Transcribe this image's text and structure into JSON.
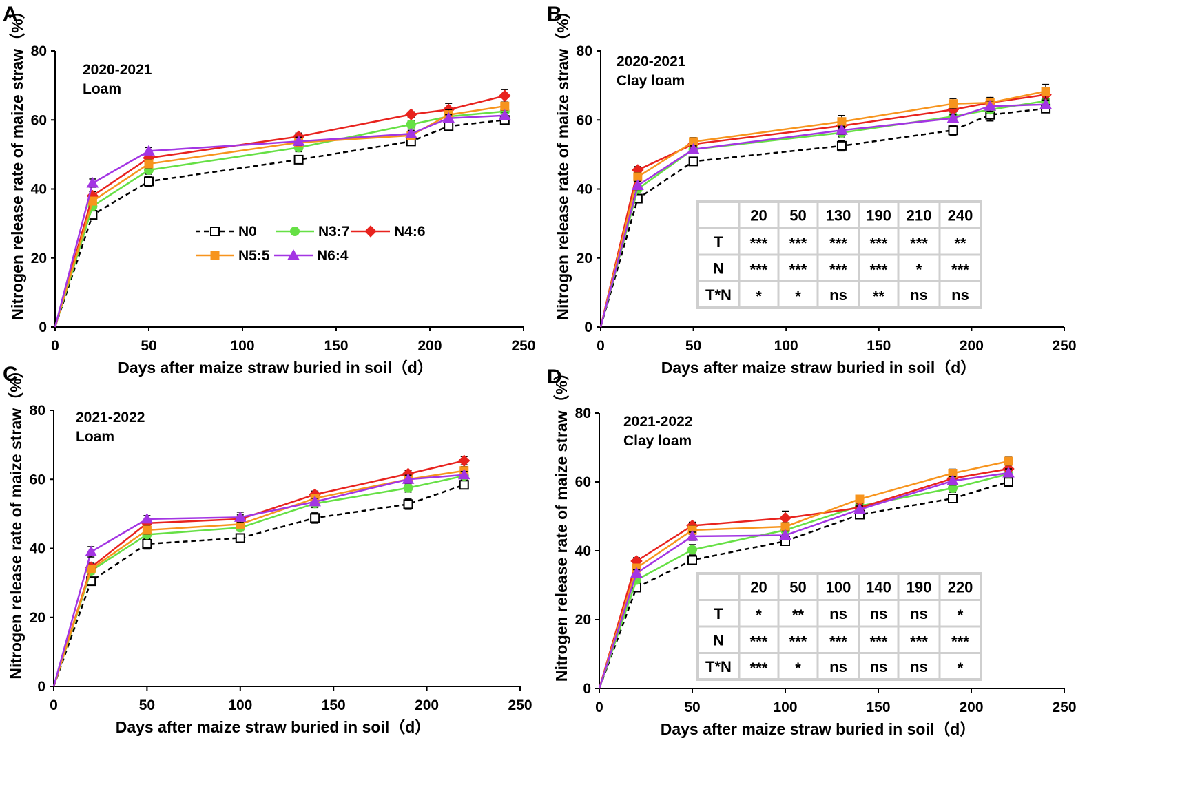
{
  "legend": [
    {
      "key": "N0",
      "label": "N0",
      "color": "#000000",
      "marker": "square-open",
      "dashed": true
    },
    {
      "key": "N37",
      "label": "N3:7",
      "color": "#66E045",
      "marker": "circle",
      "dashed": false
    },
    {
      "key": "N46",
      "label": "N4:6",
      "color": "#E8231E",
      "marker": "diamond",
      "dashed": false
    },
    {
      "key": "N55",
      "label": "N5:5",
      "color": "#F7941D",
      "marker": "square",
      "dashed": false
    },
    {
      "key": "N64",
      "label": "N6:4",
      "color": "#A335E3",
      "marker": "triangle",
      "dashed": false
    }
  ],
  "chart_data": [
    {
      "type": "line",
      "panel": "A",
      "annotation": [
        "2020-2021",
        "Loam"
      ],
      "xlabel": "Days after maize straw buried in soil（d）",
      "ylabel": "Nitrogen release rate of maize straw（%）",
      "xlim": [
        0,
        250
      ],
      "ylim": [
        0,
        80
      ],
      "xticks": [
        "0",
        "50",
        "100",
        "150",
        "200",
        "250"
      ],
      "yticks": [
        "0",
        "20",
        "40",
        "60",
        "80"
      ],
      "x": [
        0,
        20,
        50,
        130,
        190,
        210,
        240
      ],
      "series": [
        {
          "name": "N0",
          "values": [
            0,
            32.5,
            42.2,
            48.5,
            53.8,
            58.2,
            60.0
          ],
          "err": [
            0,
            1.2,
            1.5,
            0.8,
            1.0,
            1.2,
            1.0
          ]
        },
        {
          "name": "N3:7",
          "values": [
            0,
            35.0,
            45.5,
            52.0,
            58.7,
            61.0,
            62.5
          ],
          "err": [
            0,
            1.0,
            1.2,
            1.2,
            1.0,
            1.2,
            1.2
          ]
        },
        {
          "name": "N4:6",
          "values": [
            0,
            38.0,
            49.0,
            55.2,
            61.6,
            63.0,
            67.0
          ],
          "err": [
            0,
            1.2,
            1.2,
            1.0,
            0.8,
            1.8,
            1.8
          ]
        },
        {
          "name": "N5:5",
          "values": [
            0,
            36.5,
            47.3,
            53.5,
            55.5,
            61.5,
            64.0
          ],
          "err": [
            0,
            1.0,
            1.2,
            1.0,
            1.0,
            1.5,
            1.2
          ]
        },
        {
          "name": "N6:4",
          "values": [
            0,
            41.7,
            51.0,
            53.8,
            56.0,
            60.5,
            61.3
          ],
          "err": [
            0,
            1.2,
            1.0,
            1.2,
            1.0,
            1.0,
            1.0
          ]
        }
      ],
      "show_legend": true
    },
    {
      "type": "line",
      "panel": "B",
      "annotation": [
        "2020-2021",
        "Clay loam"
      ],
      "xlabel": "Days after maize straw buried in soil（d）",
      "ylabel": "Nitrogen release rate of maize straw（%）",
      "xlim": [
        0,
        250
      ],
      "ylim": [
        0,
        80
      ],
      "xticks": [
        "0",
        "50",
        "100",
        "150",
        "200",
        "250"
      ],
      "yticks": [
        "0",
        "20",
        "40",
        "60",
        "80"
      ],
      "x": [
        0,
        20,
        50,
        130,
        190,
        210,
        240
      ],
      "series": [
        {
          "name": "N0",
          "values": [
            0,
            37.2,
            48.0,
            52.5,
            57.0,
            61.5,
            63.3
          ],
          "err": [
            0,
            1.0,
            1.0,
            1.5,
            1.5,
            1.8,
            1.0
          ]
        },
        {
          "name": "N3:7",
          "values": [
            0,
            40.0,
            51.5,
            56.3,
            61.0,
            63.0,
            65.5
          ],
          "err": [
            0,
            1.0,
            1.0,
            1.2,
            1.2,
            1.2,
            1.2
          ]
        },
        {
          "name": "N4:6",
          "values": [
            0,
            45.5,
            53.0,
            58.3,
            63.0,
            65.0,
            67.3
          ],
          "err": [
            0,
            1.0,
            1.2,
            1.2,
            1.5,
            1.5,
            1.5
          ]
        },
        {
          "name": "N5:5",
          "values": [
            0,
            43.5,
            53.7,
            59.5,
            64.7,
            65.0,
            68.3
          ],
          "err": [
            0,
            1.2,
            1.2,
            1.8,
            1.5,
            1.5,
            2.0
          ]
        },
        {
          "name": "N6:4",
          "values": [
            0,
            41.0,
            51.5,
            57.0,
            60.5,
            64.0,
            64.5
          ],
          "err": [
            0,
            1.2,
            1.0,
            1.2,
            1.2,
            1.5,
            1.2
          ]
        }
      ],
      "stats_table": {
        "header": [
          "",
          "20",
          "50",
          "130",
          "190",
          "210",
          "240"
        ],
        "rows": [
          [
            "T",
            "***",
            "***",
            "***",
            "***",
            "***",
            "**"
          ],
          [
            "N",
            "***",
            "***",
            "***",
            "***",
            "*",
            "***"
          ],
          [
            "T*N",
            "*",
            "*",
            "ns",
            "**",
            "ns",
            "ns"
          ]
        ]
      }
    },
    {
      "type": "line",
      "panel": "C",
      "annotation": [
        "2021-2022",
        "Loam"
      ],
      "xlabel": "Days after maize straw buried in soil（d）",
      "ylabel": "Nitrogen release rate of maize straw（%）",
      "xlim": [
        0,
        250
      ],
      "ylim": [
        0,
        80
      ],
      "xticks": [
        "0",
        "50",
        "100",
        "150",
        "200",
        "250"
      ],
      "yticks": [
        "0",
        "20",
        "40",
        "60",
        "80"
      ],
      "x": [
        0,
        20,
        50,
        100,
        140,
        190,
        220
      ],
      "series": [
        {
          "name": "N0",
          "values": [
            0,
            30.5,
            41.3,
            43.0,
            48.8,
            52.8,
            58.4
          ],
          "err": [
            0,
            1.0,
            1.5,
            0.8,
            1.5,
            1.5,
            1.0
          ]
        },
        {
          "name": "N3:7",
          "values": [
            0,
            33.5,
            44.0,
            46.0,
            53.0,
            57.5,
            61.0
          ],
          "err": [
            0,
            1.0,
            1.2,
            1.0,
            1.2,
            1.2,
            1.2
          ]
        },
        {
          "name": "N4:6",
          "values": [
            0,
            34.5,
            47.3,
            48.5,
            55.6,
            61.6,
            65.4
          ],
          "err": [
            0,
            1.2,
            1.2,
            1.2,
            1.0,
            1.0,
            1.2
          ]
        },
        {
          "name": "N5:5",
          "values": [
            0,
            34.0,
            45.3,
            47.0,
            54.5,
            60.0,
            62.5
          ],
          "err": [
            0,
            1.0,
            1.2,
            1.0,
            1.0,
            1.2,
            1.2
          ]
        },
        {
          "name": "N6:4",
          "values": [
            0,
            39.0,
            48.5,
            49.0,
            53.5,
            60.0,
            61.3
          ],
          "err": [
            0,
            1.5,
            1.0,
            1.5,
            1.0,
            1.2,
            1.0
          ]
        }
      ]
    },
    {
      "type": "line",
      "panel": "D",
      "annotation": [
        "2021-2022",
        "Clay loam"
      ],
      "xlabel": "Days after maize straw buried in soil（d）",
      "ylabel": "Nitrogen release rate of maize straw（%）",
      "xlim": [
        0,
        250
      ],
      "ylim": [
        0,
        80
      ],
      "xticks": [
        "0",
        "50",
        "100",
        "150",
        "200",
        "250"
      ],
      "yticks": [
        "0",
        "20",
        "40",
        "60",
        "80"
      ],
      "x": [
        0,
        20,
        50,
        100,
        140,
        190,
        220
      ],
      "series": [
        {
          "name": "N0",
          "values": [
            0,
            29.3,
            37.3,
            42.8,
            50.5,
            55.2,
            60.0
          ],
          "err": [
            0,
            1.0,
            1.2,
            1.0,
            1.0,
            1.0,
            1.2
          ]
        },
        {
          "name": "N3:7",
          "values": [
            0,
            31.5,
            40.3,
            46.0,
            53.0,
            58.2,
            62.3
          ],
          "err": [
            0,
            1.0,
            1.5,
            1.2,
            1.2,
            1.2,
            1.2
          ]
        },
        {
          "name": "N4:6",
          "values": [
            0,
            37.0,
            47.3,
            49.5,
            52.5,
            61.0,
            63.8
          ],
          "err": [
            0,
            1.0,
            1.0,
            2.0,
            1.2,
            1.2,
            1.2
          ]
        },
        {
          "name": "N5:5",
          "values": [
            0,
            35.0,
            46.0,
            47.0,
            55.0,
            62.5,
            66.0
          ],
          "err": [
            0,
            1.0,
            1.2,
            1.2,
            1.0,
            1.2,
            1.2
          ]
        },
        {
          "name": "N6:4",
          "values": [
            0,
            33.5,
            44.2,
            44.5,
            52.0,
            60.3,
            62.6
          ],
          "err": [
            0,
            1.0,
            1.2,
            1.2,
            1.0,
            1.2,
            1.2
          ]
        }
      ],
      "stats_table": {
        "header": [
          "",
          "20",
          "50",
          "100",
          "140",
          "190",
          "220"
        ],
        "rows": [
          [
            "T",
            "*",
            "**",
            "ns",
            "ns",
            "ns",
            "*"
          ],
          [
            "N",
            "***",
            "***",
            "***",
            "***",
            "***",
            "***"
          ],
          [
            "T*N",
            "***",
            "*",
            "ns",
            "ns",
            "ns",
            "*"
          ]
        ]
      }
    }
  ]
}
